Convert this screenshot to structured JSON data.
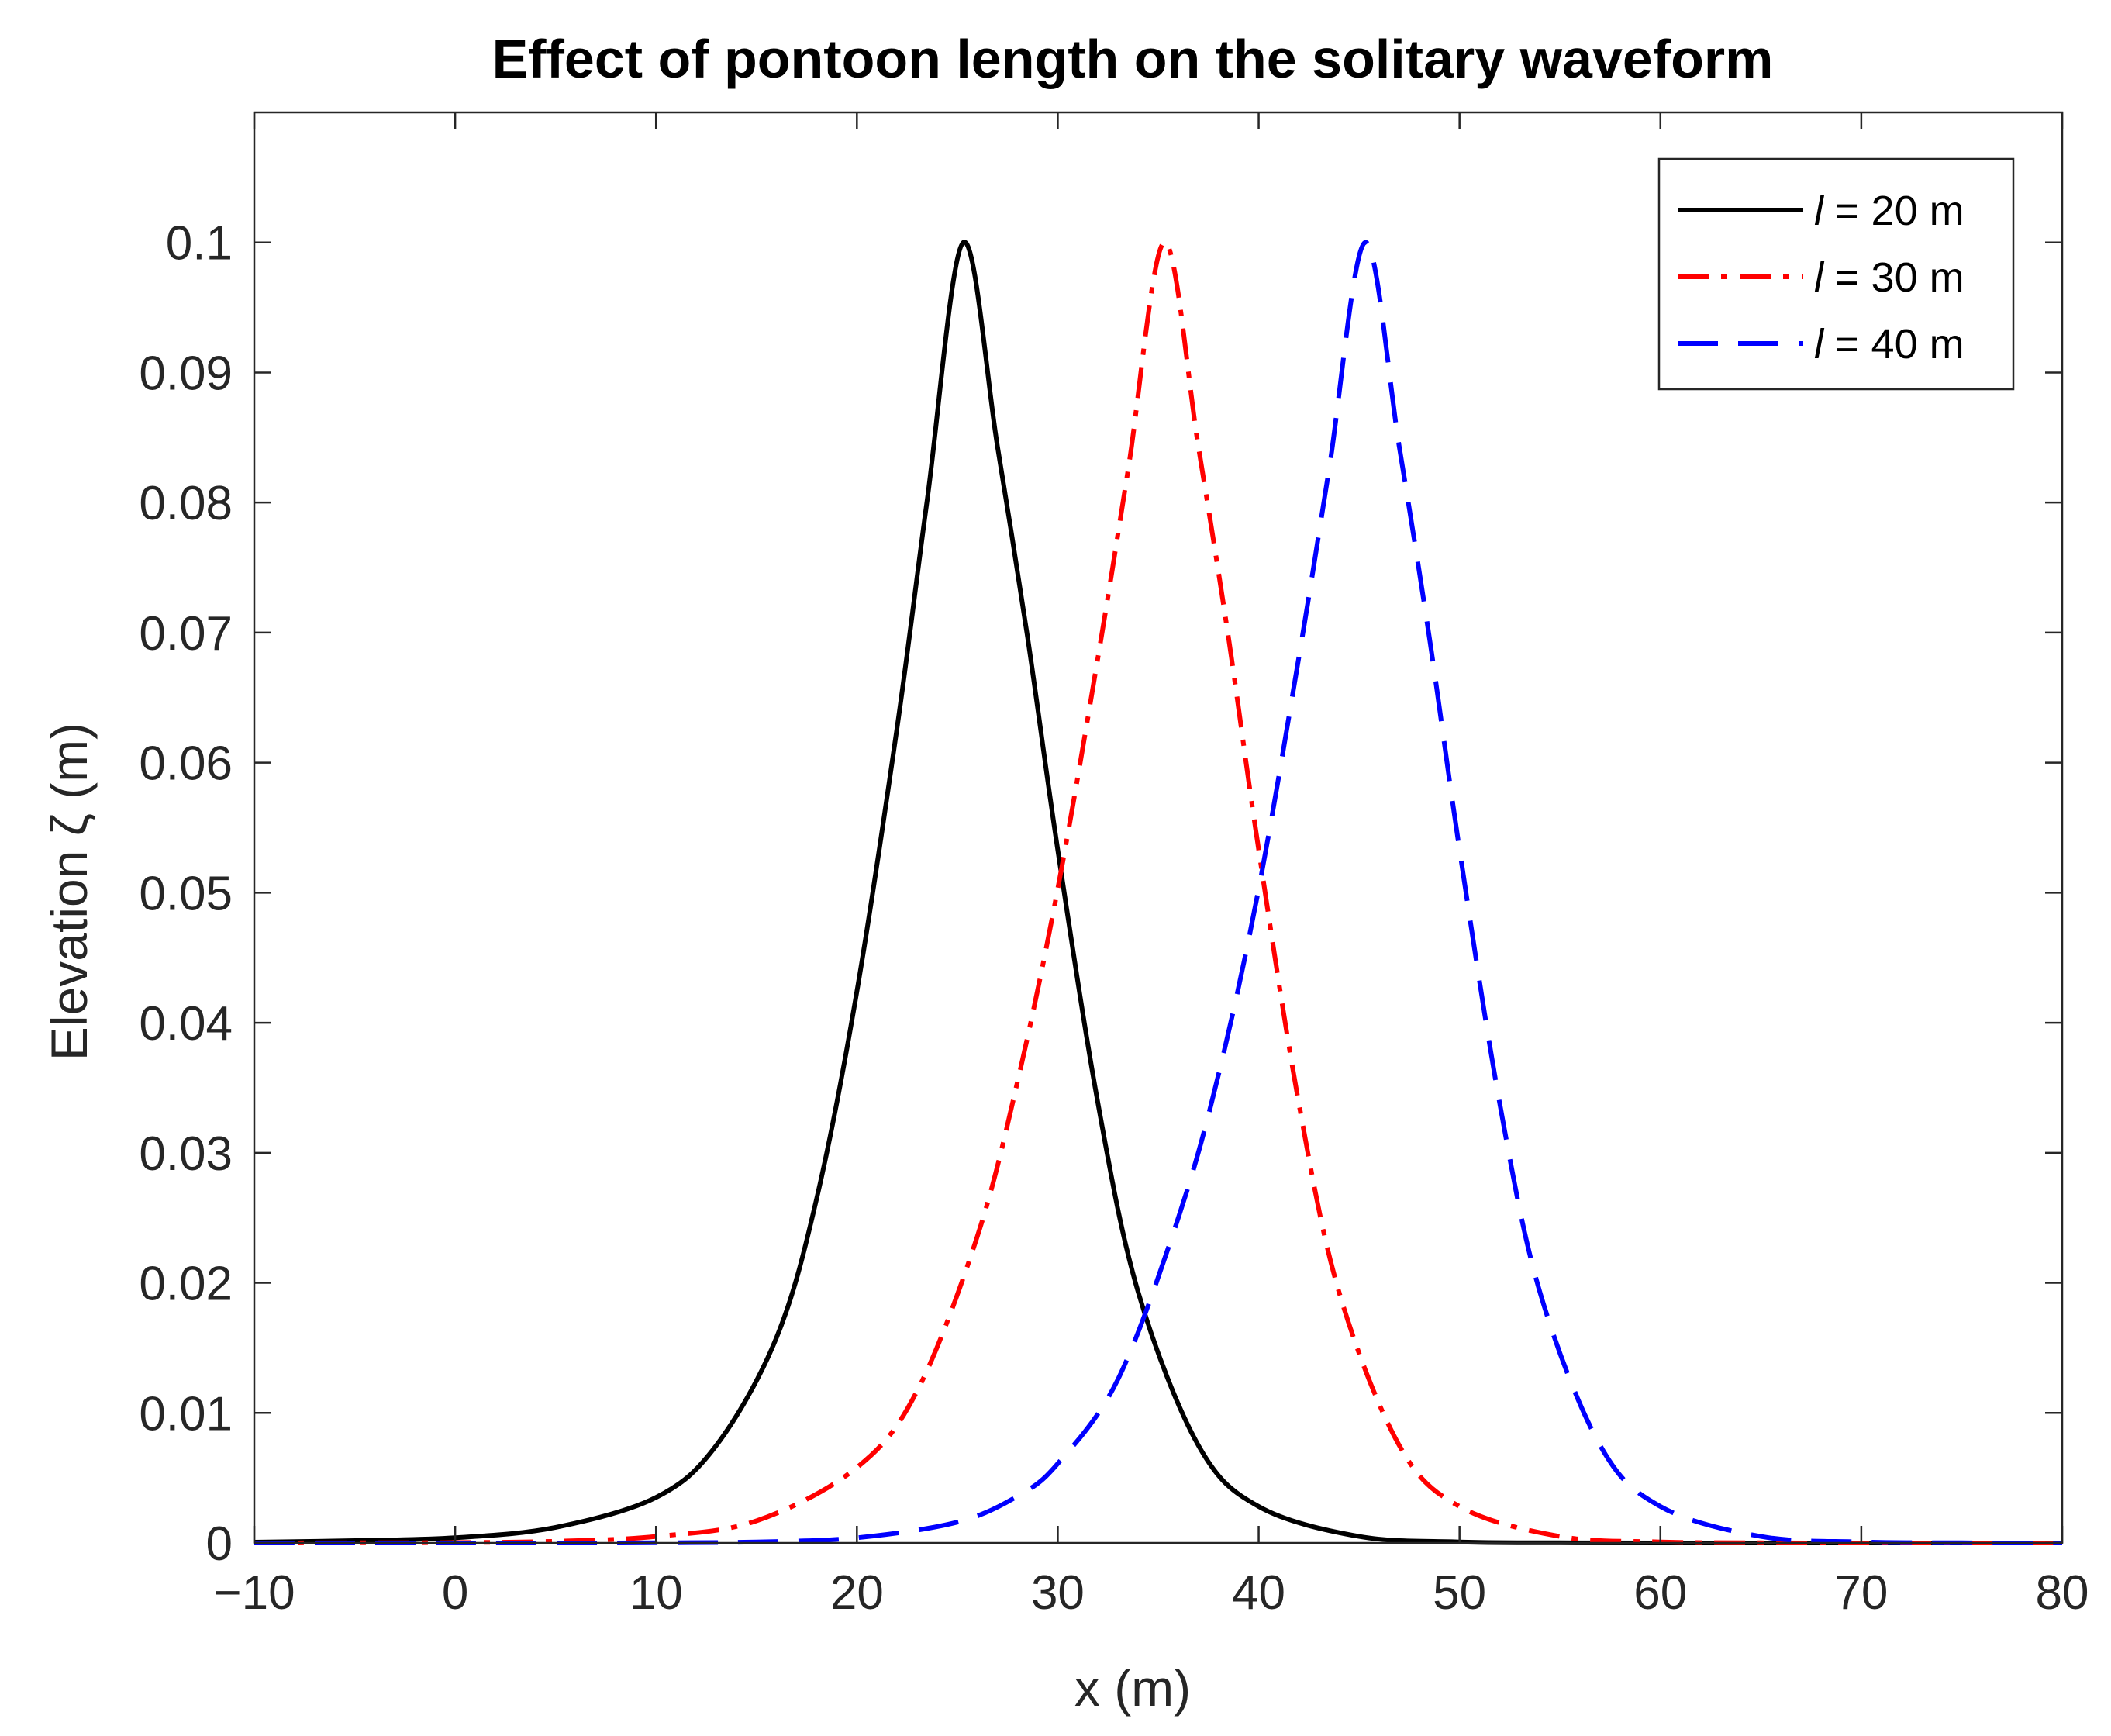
{
  "chart_data": {
    "type": "line",
    "title": "Effect of pontoon length on the solitary waveform",
    "xlabel": "x (m)",
    "ylabel": "Elevation ζ (m)",
    "xlim": [
      -10,
      80
    ],
    "ylim": [
      0,
      0.11
    ],
    "xticks": [
      -10,
      0,
      10,
      20,
      30,
      40,
      50,
      60,
      70,
      80
    ],
    "xtick_labels": [
      "−10",
      "0",
      "10",
      "20",
      "30",
      "40",
      "50",
      "60",
      "70",
      "80"
    ],
    "yticks": [
      0,
      0.01,
      0.02,
      0.03,
      0.04,
      0.05,
      0.06,
      0.07,
      0.08,
      0.09,
      0.1
    ],
    "ytick_labels": [
      "0",
      "0.01",
      "0.02",
      "0.03",
      "0.04",
      "0.05",
      "0.06",
      "0.07",
      "0.08",
      "0.09",
      "0.1"
    ],
    "grid": false,
    "legend_position": "top-right",
    "series": [
      {
        "name": "l = 20 m",
        "legend_italic": "l",
        "legend_rest": " = 20 m",
        "color": "#000000",
        "style": "solid",
        "x": [
          -10,
          -5,
          0,
          5,
          10,
          13,
          16,
          18,
          20,
          22,
          23.5,
          25.3,
          27,
          28.5,
          30,
          32,
          34,
          37,
          40,
          45,
          50,
          55,
          60,
          65,
          70,
          75,
          80
        ],
        "y": [
          6e-05,
          0.00018,
          0.0004,
          0.0012,
          0.0035,
          0.0075,
          0.0158,
          0.0265,
          0.0424,
          0.0627,
          0.0802,
          0.1,
          0.0843,
          0.0696,
          0.0533,
          0.0338,
          0.0193,
          0.0075,
          0.0028,
          0.0005,
          8e-05,
          1e-05,
          0,
          0,
          0,
          0,
          0
        ]
      },
      {
        "name": "l = 30 m",
        "legend_italic": "l",
        "legend_rest": " = 30 m",
        "color": "#ff0000",
        "style": "dashdot",
        "x": [
          -10,
          -5,
          0,
          5,
          10,
          15,
          20,
          23,
          26,
          28,
          30,
          32,
          33.5,
          35.3,
          37,
          38.5,
          40,
          42,
          44,
          47,
          50,
          55,
          60,
          65,
          70,
          75,
          80
        ],
        "y": [
          0,
          1e-05,
          3e-05,
          0.00013,
          0.0005,
          0.0017,
          0.0058,
          0.0117,
          0.0236,
          0.0355,
          0.0503,
          0.0681,
          0.0825,
          0.1,
          0.0843,
          0.0696,
          0.0533,
          0.0338,
          0.0193,
          0.0075,
          0.0028,
          0.0005,
          8e-05,
          1e-05,
          0,
          0,
          0
        ]
      },
      {
        "name": "l = 40 m",
        "legend_italic": "l",
        "legend_rest": " = 40 m",
        "color": "#0000ff",
        "style": "dashed",
        "x": [
          -10,
          0,
          10,
          15,
          20,
          25,
          28,
          30,
          33,
          36,
          38,
          40,
          42,
          43.5,
          45.3,
          47,
          48.5,
          50,
          52,
          54,
          57,
          60,
          65,
          70,
          75,
          80
        ],
        "y": [
          0,
          0,
          1e-05,
          8e-05,
          0.0004,
          0.0016,
          0.0036,
          0.0061,
          0.0126,
          0.025,
          0.036,
          0.0503,
          0.0681,
          0.0825,
          0.1,
          0.0843,
          0.0696,
          0.0533,
          0.0338,
          0.0193,
          0.0075,
          0.0028,
          0.0005,
          8e-05,
          1e-05,
          0
        ]
      }
    ]
  }
}
